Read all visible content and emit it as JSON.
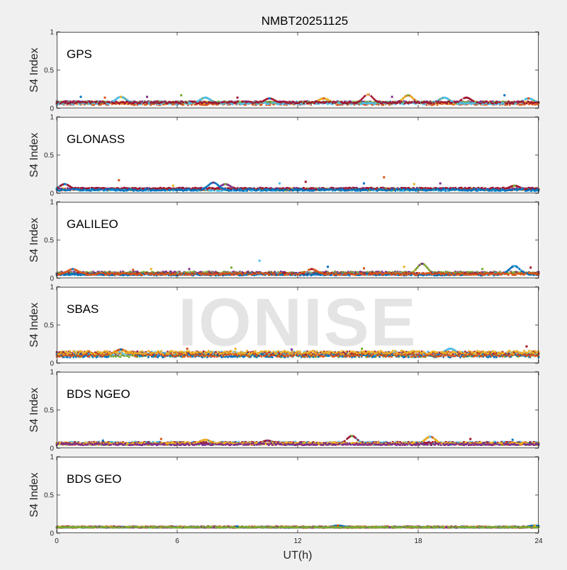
{
  "chart_data": {
    "type": "scatter",
    "title": "NMBT20251125",
    "xlabel": "UT(h)",
    "ylabel": "S4 Index",
    "xlim": [
      0,
      24
    ],
    "ylim": [
      0,
      1
    ],
    "xticks": [
      0,
      6,
      12,
      18,
      24
    ],
    "yticks": [
      0,
      0.5,
      1
    ],
    "yticklabels": [
      "0",
      "0.5",
      "1"
    ],
    "grid": false,
    "watermark": "IONISE",
    "series_colors": [
      "#0072BD",
      "#D95319",
      "#EDB120",
      "#7E2F8E",
      "#77AC30",
      "#4DBEEE",
      "#A2142F"
    ],
    "panels": [
      {
        "name": "GPS",
        "baseline": 0.07,
        "spread": 0.03,
        "peaks": [
          [
            1.2,
            0.15
          ],
          [
            2.4,
            0.14
          ],
          [
            3.2,
            0.15
          ],
          [
            4.5,
            0.15
          ],
          [
            6.2,
            0.17
          ],
          [
            7.4,
            0.14
          ],
          [
            9.0,
            0.14
          ],
          [
            10.6,
            0.13
          ],
          [
            13.3,
            0.13
          ],
          [
            15.5,
            0.18
          ],
          [
            16.7,
            0.15
          ],
          [
            17.5,
            0.17
          ],
          [
            19.3,
            0.14
          ],
          [
            20.4,
            0.14
          ],
          [
            22.3,
            0.17
          ],
          [
            23.5,
            0.13
          ]
        ]
      },
      {
        "name": "GLONASS",
        "baseline": 0.05,
        "spread": 0.03,
        "peaks": [
          [
            0.4,
            0.12
          ],
          [
            3.1,
            0.17
          ],
          [
            5.8,
            0.1
          ],
          [
            7.8,
            0.14
          ],
          [
            8.4,
            0.12
          ],
          [
            11.1,
            0.13
          ],
          [
            12.4,
            0.15
          ],
          [
            15.3,
            0.13
          ],
          [
            16.3,
            0.21
          ],
          [
            17.8,
            0.12
          ],
          [
            19.1,
            0.13
          ],
          [
            22.8,
            0.1
          ]
        ]
      },
      {
        "name": "GALILEO",
        "baseline": 0.06,
        "spread": 0.03,
        "peaks": [
          [
            0.8,
            0.12
          ],
          [
            3.8,
            0.11
          ],
          [
            4.7,
            0.12
          ],
          [
            6.6,
            0.12
          ],
          [
            8.7,
            0.14
          ],
          [
            10.1,
            0.23
          ],
          [
            12.7,
            0.12
          ],
          [
            13.5,
            0.15
          ],
          [
            15.3,
            0.13
          ],
          [
            17.3,
            0.15
          ],
          [
            18.2,
            0.19
          ],
          [
            21.2,
            0.12
          ],
          [
            22.8,
            0.16
          ],
          [
            23.6,
            0.14
          ]
        ]
      },
      {
        "name": "SBAS",
        "baseline": 0.12,
        "spread": 0.05,
        "peaks": [
          [
            3.2,
            0.18
          ],
          [
            6.5,
            0.19
          ],
          [
            8.9,
            0.19
          ],
          [
            11.7,
            0.18
          ],
          [
            15.2,
            0.19
          ],
          [
            19.6,
            0.19
          ],
          [
            23.4,
            0.22
          ]
        ]
      },
      {
        "name": "BDS NGEO",
        "baseline": 0.06,
        "spread": 0.03,
        "peaks": [
          [
            2.3,
            0.1
          ],
          [
            5.2,
            0.12
          ],
          [
            7.4,
            0.11
          ],
          [
            10.5,
            0.1
          ],
          [
            14.7,
            0.16
          ],
          [
            18.6,
            0.15
          ],
          [
            20.6,
            0.12
          ],
          [
            22.7,
            0.11
          ]
        ]
      },
      {
        "name": "BDS GEO",
        "baseline": 0.08,
        "spread": 0.012,
        "peaks": [
          [
            9.0,
            0.09
          ],
          [
            14.0,
            0.1
          ],
          [
            23.8,
            0.1
          ]
        ]
      }
    ]
  }
}
